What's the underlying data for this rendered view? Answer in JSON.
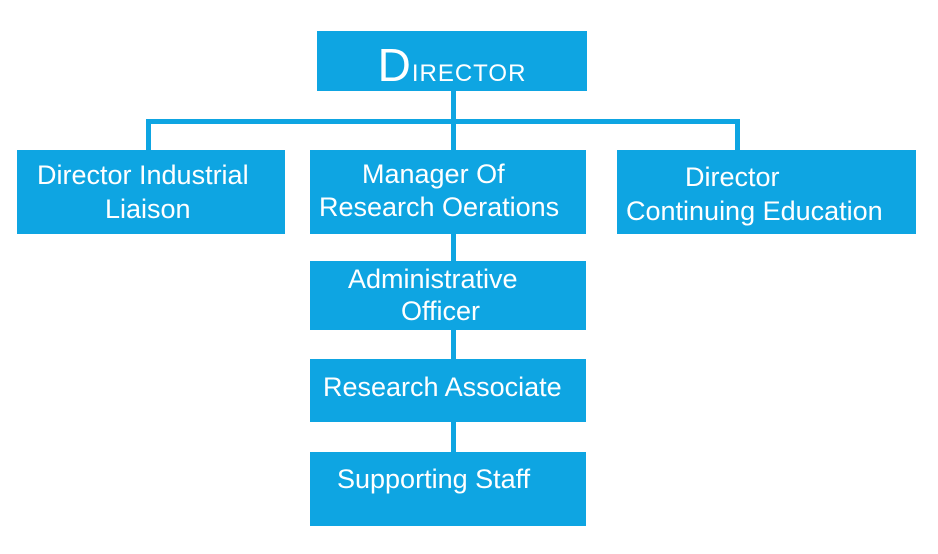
{
  "colors": {
    "box_fill": "#0ea5e2",
    "connector": "#0ea5e2",
    "text": "#ffffff",
    "background": "#ffffff"
  },
  "org_chart": {
    "top": {
      "title_initial": "D",
      "title_rest": "irector"
    },
    "second_row": {
      "left": {
        "line1": "Director Industrial",
        "line2": "Liaison"
      },
      "center": {
        "line1": "Manager Of",
        "line2": "Research Oerations"
      },
      "right": {
        "line1": "Director",
        "line2": "Continuing Education"
      }
    },
    "chain": {
      "admin": {
        "line1": "Administrative",
        "line2": "Officer"
      },
      "research_associate": {
        "line1": "Research Associate"
      },
      "supporting_staff": {
        "line1": "Supporting Staff"
      }
    }
  }
}
